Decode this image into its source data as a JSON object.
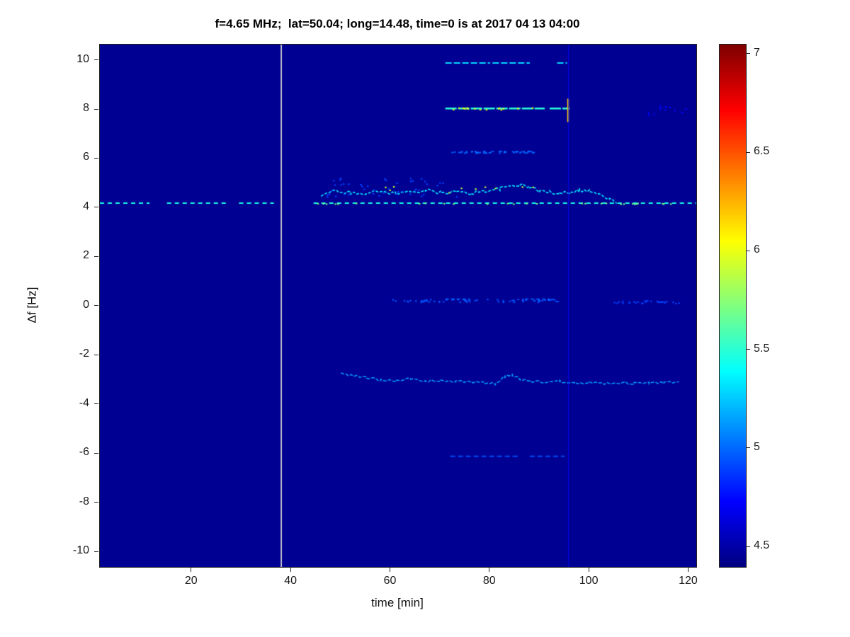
{
  "figure": {
    "background": "#ffffff",
    "axes_color": "#222222"
  },
  "chart_data": {
    "type": "heatmap",
    "title": "f=4.65 MHz;  lat=50.04; long=14.48, time=0 is at 2017 04 13 04:00",
    "xlabel": "time [min]",
    "ylabel": "Δf [Hz]",
    "xlim": [
      1.5,
      121.5
    ],
    "ylim": [
      -10.6,
      10.65
    ],
    "x_ticks": [
      20,
      40,
      60,
      80,
      100,
      120
    ],
    "y_ticks": [
      10,
      8,
      6,
      4,
      2,
      0,
      -2,
      -4,
      -6,
      -8,
      -10
    ],
    "grid": false,
    "colormap": "jet",
    "background_value": 4.45,
    "colorbar": {
      "min": 4.4,
      "max": 7.05,
      "ticks": [
        4.5,
        5,
        5.5,
        6,
        6.5,
        7
      ],
      "position": "right"
    },
    "features": [
      {
        "name": "carrier-line-4p2Hz",
        "type": "hdashes",
        "y": 4.2,
        "value": 5.45,
        "line_width": 2,
        "dash": [
          6,
          5
        ],
        "segments": [
          [
            1.5,
            11.5
          ],
          [
            15,
            27
          ],
          [
            29.5,
            36.5
          ],
          [
            44.5,
            121.5
          ]
        ]
      },
      {
        "name": "carrier-bright-dots",
        "type": "dots",
        "y": 4.2,
        "xrange": [
          45,
          121
        ],
        "value": 5.7,
        "count": 28,
        "yspread": 0.02
      },
      {
        "name": "start-vline-38min",
        "type": "vline",
        "x": 38,
        "value": 6.0,
        "line_width": 1.5,
        "color": "#fbfbd9"
      },
      {
        "name": "doppler-wavy-trace",
        "type": "noisyline",
        "value": 5.35,
        "line_width": 1.6,
        "jitter": 0.07,
        "dash": [
          4,
          2
        ],
        "points": [
          [
            46,
            4.5
          ],
          [
            49,
            4.72
          ],
          [
            52,
            4.6
          ],
          [
            55,
            4.62
          ],
          [
            58,
            4.68
          ],
          [
            61,
            4.6
          ],
          [
            64,
            4.66
          ],
          [
            67,
            4.72
          ],
          [
            70,
            4.62
          ],
          [
            73,
            4.66
          ],
          [
            76,
            4.6
          ],
          [
            79,
            4.7
          ],
          [
            82,
            4.78
          ],
          [
            84,
            4.9
          ],
          [
            86,
            4.95
          ],
          [
            88,
            4.85
          ],
          [
            90,
            4.7
          ],
          [
            92,
            4.64
          ],
          [
            94,
            4.62
          ],
          [
            96,
            4.66
          ],
          [
            98,
            4.72
          ],
          [
            100,
            4.7
          ],
          [
            102,
            4.55
          ],
          [
            104,
            4.35
          ],
          [
            105.5,
            4.25
          ]
        ]
      },
      {
        "name": "wavy-bright-flecks",
        "type": "dots",
        "y": 4.78,
        "xrange": [
          58,
          92
        ],
        "value": 5.9,
        "count": 10,
        "yspread": 0.14
      },
      {
        "name": "upper-scatter-noise",
        "type": "dots",
        "y": 4.85,
        "xrange": [
          47,
          74
        ],
        "value": 4.9,
        "count": 45,
        "yspread": 0.4
      },
      {
        "name": "harmonic-10Hz",
        "type": "hdashes",
        "y": 9.9,
        "value": 5.3,
        "line_width": 2,
        "dash": [
          9,
          3
        ],
        "segments": [
          [
            71,
            80
          ],
          [
            80.5,
            88
          ],
          [
            93.5,
            95.5
          ]
        ]
      },
      {
        "name": "harmonic-8Hz",
        "type": "hdashes",
        "y": 8.05,
        "value": 5.5,
        "line_width": 2.5,
        "dash": [
          16,
          2
        ],
        "segments": [
          [
            71,
            91
          ],
          [
            92,
            96
          ]
        ]
      },
      {
        "name": "harmonic-8Hz-bright",
        "type": "dots",
        "y": 8.05,
        "xrange": [
          72,
          90
        ],
        "value": 6.0,
        "count": 16,
        "yspread": 0.05
      },
      {
        "name": "burst-96min-8Hz",
        "type": "vseg",
        "x": 95.7,
        "y0": 7.5,
        "y1": 8.45,
        "value": 6.2,
        "line_width": 2.5
      },
      {
        "name": "harmonic-6p3Hz",
        "type": "dots",
        "y": 6.3,
        "xrange": [
          72,
          89
        ],
        "value": 5.0,
        "count": 50,
        "yspread": 0.04
      },
      {
        "name": "trace-0Hz",
        "type": "dots",
        "y": 0.25,
        "xrange": [
          60,
          95
        ],
        "value": 4.95,
        "count": 70,
        "yspread": 0.06
      },
      {
        "name": "trace-0Hz-dashes",
        "type": "hdashes",
        "y": 0.3,
        "value": 5.0,
        "line_width": 1.5,
        "dash": [
          5,
          3
        ],
        "segments": [
          [
            71,
            76
          ],
          [
            87,
            92
          ]
        ]
      },
      {
        "name": "trace-0Hz-right",
        "type": "dots",
        "y": 0.2,
        "xrange": [
          104,
          118
        ],
        "value": 4.9,
        "count": 30,
        "yspread": 0.06
      },
      {
        "name": "trace-minus3Hz",
        "type": "noisyline",
        "value": 5.15,
        "line_width": 1.5,
        "jitter": 0.05,
        "dash": [
          5,
          2
        ],
        "points": [
          [
            50,
            -2.7
          ],
          [
            52,
            -2.8
          ],
          [
            55,
            -2.9
          ],
          [
            58,
            -2.98
          ],
          [
            61,
            -3.0
          ],
          [
            64,
            -2.96
          ],
          [
            67,
            -3.05
          ],
          [
            70,
            -3.0
          ],
          [
            73,
            -3.08
          ],
          [
            76,
            -3.05
          ],
          [
            79,
            -3.12
          ],
          [
            81,
            -3.15
          ],
          [
            83,
            -2.88
          ],
          [
            84.5,
            -2.8
          ],
          [
            86,
            -2.95
          ],
          [
            88,
            -3.05
          ],
          [
            91,
            -3.08
          ],
          [
            94,
            -3.05
          ],
          [
            97,
            -3.1
          ],
          [
            100,
            -3.1
          ],
          [
            103,
            -3.14
          ],
          [
            106,
            -3.1
          ],
          [
            109,
            -3.13
          ],
          [
            112,
            -3.12
          ],
          [
            115,
            -3.1
          ],
          [
            118,
            -3.1
          ]
        ]
      },
      {
        "name": "harmonic-minus6p1Hz",
        "type": "hdashes",
        "y": -6.1,
        "value": 4.95,
        "line_width": 1.8,
        "dash": [
          7,
          4
        ],
        "segments": [
          [
            72,
            86
          ],
          [
            88,
            95
          ]
        ]
      },
      {
        "name": "faint-patch-8Hz-right",
        "type": "dots",
        "y": 8.0,
        "xrange": [
          110,
          120
        ],
        "value": 4.75,
        "count": 12,
        "yspread": 0.2
      },
      {
        "name": "event-vline-96min",
        "type": "vline",
        "x": 95.8,
        "value": 4.75,
        "line_width": 1,
        "alpha": 0.8
      }
    ]
  }
}
